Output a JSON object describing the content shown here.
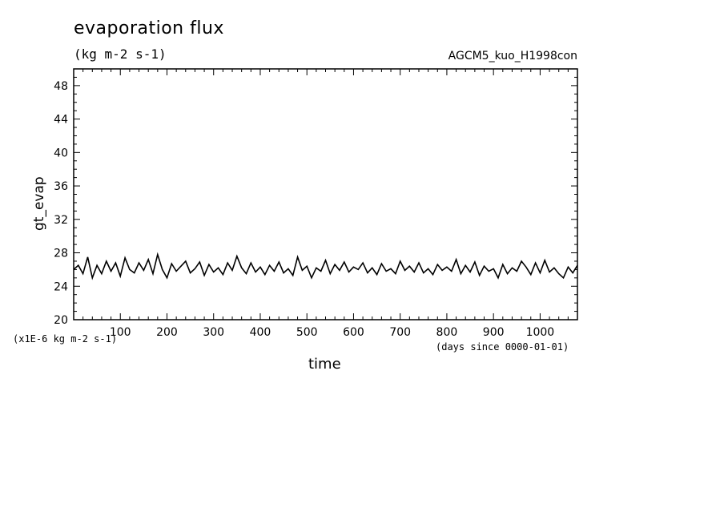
{
  "chart_data": {
    "type": "line",
    "title": "evaporation flux",
    "subtitle": "(kg m-2 s-1)",
    "model": "AGCM5_kuo_H1998con",
    "ylabel": "gt_evap",
    "xlabel": "time",
    "yunits": "(x1E-6 kg m-2 s-1)",
    "xunits": "(days since 0000-01-01)",
    "xlim": [
      0,
      1080
    ],
    "ylim": [
      20,
      50
    ],
    "xticks": [
      100,
      200,
      300,
      400,
      500,
      600,
      700,
      800,
      900,
      1000
    ],
    "yticks": [
      20,
      24,
      28,
      32,
      36,
      40,
      44,
      48
    ],
    "series": [
      {
        "x": [
          0,
          10,
          20,
          30,
          40,
          50,
          60,
          70,
          80,
          90,
          100,
          110,
          120,
          130,
          140,
          150,
          160,
          170,
          180,
          190,
          200,
          210,
          220,
          230,
          240,
          250,
          260,
          270,
          280,
          290,
          300,
          310,
          320,
          330,
          340,
          350,
          360,
          370,
          380,
          390,
          400,
          410,
          420,
          430,
          440,
          450,
          460,
          470,
          480,
          490,
          500,
          510,
          520,
          530,
          540,
          550,
          560,
          570,
          580,
          590,
          600,
          610,
          620,
          630,
          640,
          650,
          660,
          670,
          680,
          690,
          700,
          710,
          720,
          730,
          740,
          750,
          760,
          770,
          780,
          790,
          800,
          810,
          820,
          830,
          840,
          850,
          860,
          870,
          880,
          890,
          900,
          910,
          920,
          930,
          940,
          950,
          960,
          970,
          980,
          990,
          1000,
          1010,
          1020,
          1030,
          1040,
          1050,
          1060,
          1070,
          1080
        ],
        "values": [
          26.0,
          26.5,
          25.5,
          27.5,
          25.0,
          26.5,
          25.5,
          27.0,
          25.8,
          26.8,
          25.2,
          27.4,
          26.0,
          25.6,
          26.8,
          25.9,
          27.2,
          25.5,
          27.8,
          26.0,
          25.0,
          26.7,
          25.8,
          26.4,
          27.0,
          25.6,
          26.1,
          26.9,
          25.3,
          26.6,
          25.7,
          26.2,
          25.4,
          26.8,
          25.9,
          27.6,
          26.2,
          25.5,
          26.8,
          25.7,
          26.3,
          25.4,
          26.5,
          25.8,
          26.9,
          25.6,
          26.1,
          25.3,
          27.5,
          25.9,
          26.4,
          25.0,
          26.2,
          25.8,
          27.1,
          25.5,
          26.6,
          25.9,
          26.9,
          25.7,
          26.3,
          26.0,
          26.8,
          25.6,
          26.2,
          25.4,
          26.7,
          25.8,
          26.1,
          25.5,
          27.0,
          25.9,
          26.4,
          25.7,
          26.8,
          25.6,
          26.1,
          25.4,
          26.6,
          25.9,
          26.3,
          25.8,
          27.2,
          25.5,
          26.5,
          25.7,
          26.9,
          25.3,
          26.4,
          25.8,
          26.1,
          25.0,
          26.6,
          25.5,
          26.2,
          25.8,
          27.0,
          26.3,
          25.4,
          26.8,
          25.6,
          27.1,
          25.7,
          26.2,
          25.5,
          25.0,
          26.3,
          25.6,
          26.5
        ]
      }
    ]
  }
}
